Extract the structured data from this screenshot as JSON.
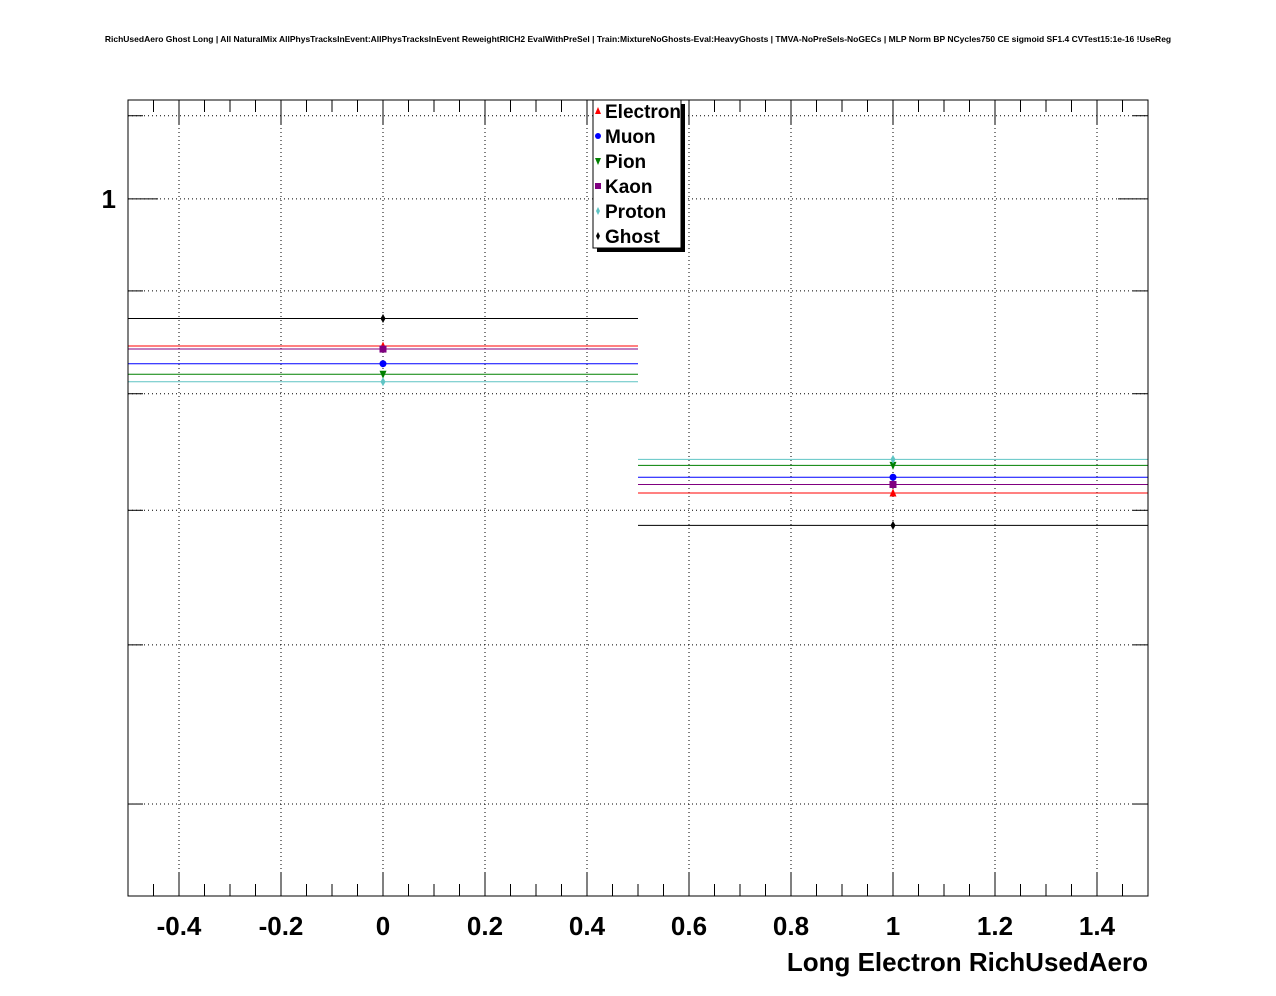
{
  "chart_data": {
    "type": "scatter",
    "title": "RichUsedAero Ghost Long | All NaturalMix AllPhysTracksInEvent:AllPhysTracksInEvent ReweightRICH2 EvalWithPreSel | Train:MixtureNoGhosts-Eval:HeavyGhosts | TMVA-NoPreSels-NoGECs | MLP Norm BP NCycles750 CE sigmoid SF1.4 CVTest15:1e-16 !UseReg",
    "xlabel": "Long Electron RichUsedAero",
    "ylabel": "",
    "xlim": [
      -0.5,
      1.5
    ],
    "ylim": [
      0.45,
      1.12
    ],
    "y_scale": "log",
    "grid": true,
    "legend_position": "top-center",
    "x_ticks": [
      -0.4,
      -0.2,
      0,
      0.2,
      0.4,
      0.6,
      0.8,
      1,
      1.2,
      1.4
    ],
    "x_tick_labels": [
      "-0.4",
      "-0.2",
      "0",
      "0.2",
      "0.4",
      "0.6",
      "0.8",
      "1",
      "1.2",
      "1.4"
    ],
    "y_ticks": [
      1
    ],
    "y_tick_labels": [
      "1"
    ],
    "bins": [
      {
        "center": 0,
        "low": -0.5,
        "high": 0.5
      },
      {
        "center": 1,
        "low": 0.5,
        "high": 1.5
      }
    ],
    "series": [
      {
        "name": "Electron",
        "color": "#ff0000",
        "marker": "triangle-up",
        "values": [
          0.845,
          0.714
        ]
      },
      {
        "name": "Muon",
        "color": "#0000ff",
        "marker": "circle",
        "values": [
          0.828,
          0.727
        ]
      },
      {
        "name": "Pion",
        "color": "#008000",
        "marker": "triangle-down",
        "values": [
          0.818,
          0.737
        ]
      },
      {
        "name": "Kaon",
        "color": "#800080",
        "marker": "square",
        "values": [
          0.842,
          0.721
        ]
      },
      {
        "name": "Proton",
        "color": "#5fc4c4",
        "marker": "diamond",
        "values": [
          0.811,
          0.742
        ]
      },
      {
        "name": "Ghost",
        "color": "#000000",
        "marker": "diamond",
        "values": [
          0.872,
          0.688
        ]
      }
    ]
  }
}
